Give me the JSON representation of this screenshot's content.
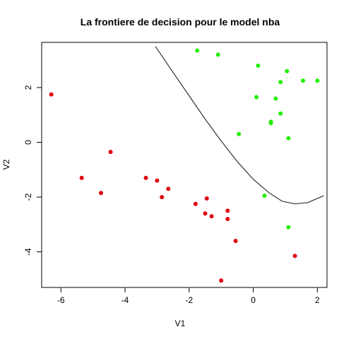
{
  "chart_data": {
    "type": "scatter",
    "title": "La frontiere de decision pour le model  nba",
    "xlabel": "V1",
    "ylabel": "V2",
    "xlim": [
      -6.6,
      2.3
    ],
    "ylim": [
      -5.3,
      3.65
    ],
    "xticks": [
      -6,
      -4,
      -2,
      0,
      2
    ],
    "yticks": [
      -4,
      -2,
      0,
      2
    ],
    "grid": false,
    "legend": "none",
    "series": [
      {
        "color": "#e0000f",
        "points": [
          {
            "x": -6.3,
            "y": 1.75
          },
          {
            "x": -5.35,
            "y": -1.3
          },
          {
            "x": -4.75,
            "y": -1.85
          },
          {
            "x": -4.45,
            "y": -0.35
          },
          {
            "x": -3.35,
            "y": -1.3
          },
          {
            "x": -3.0,
            "y": -1.4
          },
          {
            "x": -2.85,
            "y": -2.0
          },
          {
            "x": -2.65,
            "y": -1.7
          },
          {
            "x": -1.8,
            "y": -2.25
          },
          {
            "x": -1.5,
            "y": -2.6
          },
          {
            "x": -1.45,
            "y": -2.05
          },
          {
            "x": -1.3,
            "y": -2.7
          },
          {
            "x": -0.8,
            "y": -2.5
          },
          {
            "x": -0.8,
            "y": -2.8
          },
          {
            "x": -0.55,
            "y": -3.6
          },
          {
            "x": -1.0,
            "y": -5.05
          },
          {
            "x": 1.3,
            "y": -4.15
          }
        ]
      },
      {
        "color": "#22ee00",
        "points": [
          {
            "x": -1.75,
            "y": 3.35
          },
          {
            "x": -1.1,
            "y": 3.2
          },
          {
            "x": 0.15,
            "y": 2.8
          },
          {
            "x": 1.05,
            "y": 2.6
          },
          {
            "x": 0.85,
            "y": 2.2
          },
          {
            "x": 1.55,
            "y": 2.25
          },
          {
            "x": 2.0,
            "y": 2.25
          },
          {
            "x": 0.1,
            "y": 1.65
          },
          {
            "x": 0.7,
            "y": 1.6
          },
          {
            "x": 0.85,
            "y": 1.05
          },
          {
            "x": 0.55,
            "y": 0.75
          },
          {
            "x": 0.55,
            "y": 0.7
          },
          {
            "x": -0.45,
            "y": 0.3
          },
          {
            "x": 1.1,
            "y": 0.15
          },
          {
            "x": 0.35,
            "y": -1.95
          },
          {
            "x": 1.1,
            "y": -3.1
          }
        ]
      }
    ],
    "boundary": {
      "color": "#333333",
      "points": [
        {
          "x": -3.05,
          "y": 3.5
        },
        {
          "x": -2.5,
          "y": 2.55
        },
        {
          "x": -2.0,
          "y": 1.7
        },
        {
          "x": -1.5,
          "y": 0.85
        },
        {
          "x": -1.0,
          "y": 0.05
        },
        {
          "x": -0.5,
          "y": -0.7
        },
        {
          "x": 0.0,
          "y": -1.35
        },
        {
          "x": 0.5,
          "y": -1.85
        },
        {
          "x": 0.9,
          "y": -2.15
        },
        {
          "x": 1.3,
          "y": -2.25
        },
        {
          "x": 1.7,
          "y": -2.2
        },
        {
          "x": 2.2,
          "y": -1.95
        }
      ]
    }
  }
}
